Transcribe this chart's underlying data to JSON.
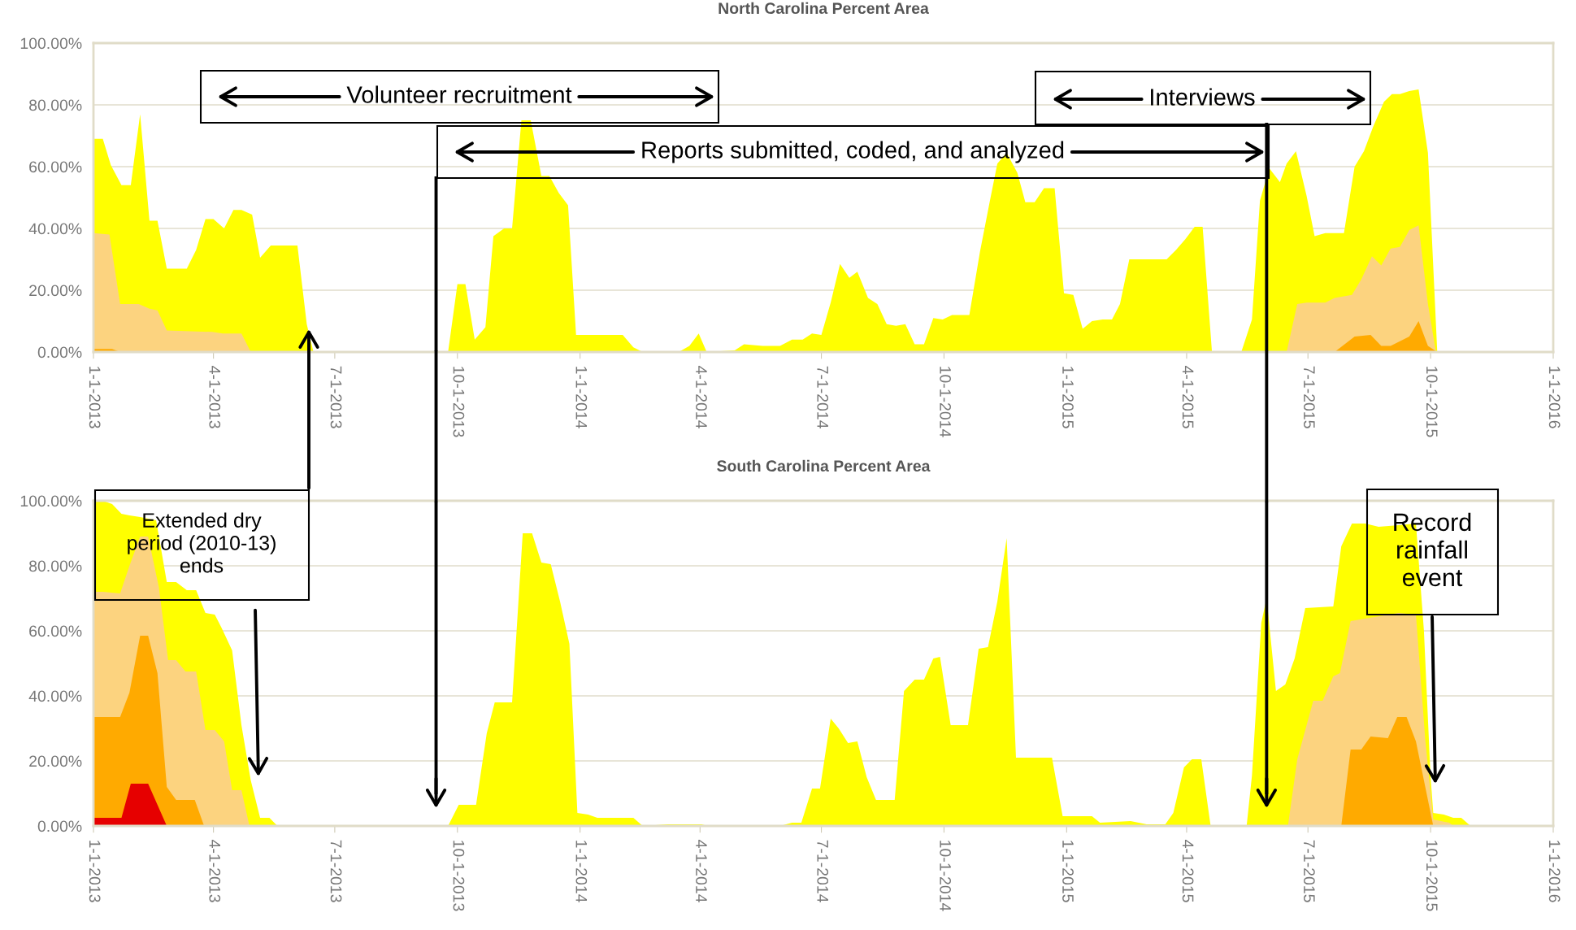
{
  "chart_data": [
    {
      "type": "area",
      "title": "North Carolina Percent Area",
      "xlim": [
        "2013-01-01",
        "2016-01-01"
      ],
      "xticks": [
        {
          "value": "2013-01-01",
          "label": "1-1-2013"
        },
        {
          "value": "2013-04-01",
          "label": "4-1-2013"
        },
        {
          "value": "2013-07-01",
          "label": "7-1-2013"
        },
        {
          "value": "2013-10-01",
          "label": "10-1-2013"
        },
        {
          "value": "2014-01-01",
          "label": "1-1-2014"
        },
        {
          "value": "2014-04-01",
          "label": "4-1-2014"
        },
        {
          "value": "2014-07-01",
          "label": "7-1-2014"
        },
        {
          "value": "2014-10-01",
          "label": "10-1-2014"
        },
        {
          "value": "2015-01-01",
          "label": "1-1-2015"
        },
        {
          "value": "2015-04-01",
          "label": "4-1-2015"
        },
        {
          "value": "2015-07-01",
          "label": "7-1-2015"
        },
        {
          "value": "2015-10-01",
          "label": "10-1-2015"
        },
        {
          "value": "2016-01-01",
          "label": "1-1-2016"
        }
      ],
      "ylim": [
        0,
        100
      ],
      "yticks": [
        {
          "value": 0,
          "label": "0.00%"
        },
        {
          "value": 20,
          "label": "20.00%"
        },
        {
          "value": 40,
          "label": "40.00%"
        },
        {
          "value": 60,
          "label": "60.00%"
        },
        {
          "value": 80,
          "label": "80.00%"
        },
        {
          "value": 100,
          "label": "100.00%"
        }
      ],
      "grid": "y",
      "series": [
        {
          "color": "#ffff00",
          "x": [
            "2013-01-01",
            "2013-01-08",
            "2013-01-14",
            "2013-01-22",
            "2013-01-29",
            "2013-02-05",
            "2013-02-12",
            "2013-02-18",
            "2013-02-25",
            "2013-03-12",
            "2013-03-19",
            "2013-03-26",
            "2013-04-01",
            "2013-04-09",
            "2013-04-16",
            "2013-04-22",
            "2013-04-30",
            "2013-05-06",
            "2013-05-14",
            "2013-06-03",
            "2013-06-10",
            "2013-06-15",
            "2013-09-24",
            "2013-10-01",
            "2013-10-07",
            "2013-10-14",
            "2013-10-22",
            "2013-10-28",
            "2013-11-05",
            "2013-11-11",
            "2013-11-18",
            "2013-11-25",
            "2013-12-03",
            "2013-12-09",
            "2013-12-16",
            "2013-12-23",
            "2013-12-29",
            "2014-02-02",
            "2014-02-10",
            "2014-02-17",
            "2014-03-16",
            "2014-03-24",
            "2014-03-31",
            "2014-04-06",
            "2014-04-27",
            "2014-05-04",
            "2014-05-18",
            "2014-05-31",
            "2014-06-09",
            "2014-06-17",
            "2014-06-24",
            "2014-07-01",
            "2014-07-08",
            "2014-07-15",
            "2014-07-22",
            "2014-07-28",
            "2014-08-05",
            "2014-08-12",
            "2014-08-19",
            "2014-08-26",
            "2014-09-02",
            "2014-09-09",
            "2014-09-16",
            "2014-09-23",
            "2014-09-30",
            "2014-10-07",
            "2014-10-20",
            "2014-10-28",
            "2014-11-04",
            "2014-11-10",
            "2014-11-17",
            "2014-11-25",
            "2014-12-01",
            "2014-12-08",
            "2014-12-15",
            "2014-12-23",
            "2014-12-30",
            "2015-01-06",
            "2015-01-13",
            "2015-01-20",
            "2015-01-28",
            "2015-02-04",
            "2015-02-10",
            "2015-02-17",
            "2015-03-17",
            "2015-03-24",
            "2015-03-31",
            "2015-04-07",
            "2015-04-13",
            "2015-04-20",
            "2015-05-12",
            "2015-05-20",
            "2015-05-26",
            "2015-06-02",
            "2015-06-10",
            "2015-06-15",
            "2015-06-22",
            "2015-06-30",
            "2015-07-06",
            "2015-07-14",
            "2015-07-28",
            "2015-08-05",
            "2015-08-12",
            "2015-08-19",
            "2015-08-27",
            "2015-09-02",
            "2015-09-08",
            "2015-09-15",
            "2015-09-22",
            "2015-09-29",
            "2015-10-06"
          ],
          "values": [
            69,
            69,
            60.5,
            54,
            54,
            77,
            42.5,
            42.5,
            27,
            27,
            33,
            43,
            43,
            40,
            46,
            46,
            44.5,
            30.5,
            34.5,
            34.5,
            9,
            0,
            0,
            22,
            22,
            4,
            8,
            37.5,
            40,
            40,
            75,
            75,
            57,
            57,
            51.5,
            47.5,
            5.5,
            5.5,
            1.5,
            0,
            0,
            2,
            6,
            0,
            0.5,
            2.5,
            2,
            2,
            4,
            4,
            6,
            5.5,
            16,
            28.5,
            24,
            26,
            17.5,
            15.5,
            9,
            8.5,
            9,
            2.5,
            2.5,
            11,
            10.5,
            12,
            12,
            32.5,
            48,
            61,
            64.5,
            58,
            48.5,
            48.5,
            53,
            53,
            19,
            18.5,
            7.5,
            10,
            10.5,
            10.5,
            15.5,
            30,
            30,
            33,
            36.5,
            40.5,
            40.5,
            0,
            0,
            10.5,
            49,
            59.5,
            55,
            61,
            65,
            50.5,
            37.5,
            38.5,
            38.5,
            60,
            65,
            73,
            81,
            83.5,
            83.5,
            84.5,
            85,
            64.5,
            0
          ]
        },
        {
          "color": "#fcd37f",
          "x": [
            "2013-01-01",
            "2013-01-13",
            "2013-01-21",
            "2013-02-04",
            "2013-02-12",
            "2013-02-18",
            "2013-02-25",
            "2013-03-31",
            "2013-04-08",
            "2013-04-22",
            "2013-04-29",
            "2015-06-15",
            "2015-06-23",
            "2015-06-30",
            "2015-07-14",
            "2015-07-21",
            "2015-08-03",
            "2015-08-10",
            "2015-08-18",
            "2015-08-25",
            "2015-09-01",
            "2015-09-08",
            "2015-09-15",
            "2015-09-22",
            "2015-09-29",
            "2015-10-05"
          ],
          "values": [
            38.5,
            38,
            15.5,
            15.5,
            14,
            13.5,
            7,
            6.5,
            6,
            6,
            0,
            0,
            15.5,
            16,
            16,
            17.5,
            18.5,
            23.5,
            31,
            28,
            33.5,
            34,
            39.5,
            41,
            15.5,
            0
          ]
        },
        {
          "color": "#ffaa00",
          "x": [
            "2013-01-01",
            "2013-01-15",
            "2013-01-21",
            "2015-07-21",
            "2015-08-05",
            "2015-08-17",
            "2015-08-25",
            "2015-09-01",
            "2015-09-15",
            "2015-09-22",
            "2015-09-29",
            "2015-10-06"
          ],
          "values": [
            1,
            1,
            0,
            0,
            5,
            5.5,
            2,
            2,
            5,
            10,
            2,
            0
          ]
        }
      ],
      "ref_lines": [
        {
          "axis": "x",
          "value": "2013-09-15",
          "color": "#000000"
        },
        {
          "axis": "x",
          "value": "2015-05-31",
          "color": "#000000"
        }
      ],
      "annotations": [
        "Volunteer recruitment",
        "Reports submitted, coded, and analyzed",
        "Interviews"
      ]
    },
    {
      "type": "area",
      "title": "South Carolina Percent Area",
      "xlim": [
        "2013-01-01",
        "2016-01-01"
      ],
      "xticks": [
        {
          "value": "2013-01-01",
          "label": "1-1-2013"
        },
        {
          "value": "2013-04-01",
          "label": "4-1-2013"
        },
        {
          "value": "2013-07-01",
          "label": "7-1-2013"
        },
        {
          "value": "2013-10-01",
          "label": "10-1-2013"
        },
        {
          "value": "2014-01-01",
          "label": "1-1-2014"
        },
        {
          "value": "2014-04-01",
          "label": "4-1-2014"
        },
        {
          "value": "2014-07-01",
          "label": "7-1-2014"
        },
        {
          "value": "2014-10-01",
          "label": "10-1-2014"
        },
        {
          "value": "2015-01-01",
          "label": "1-1-2015"
        },
        {
          "value": "2015-04-01",
          "label": "4-1-2015"
        },
        {
          "value": "2015-07-01",
          "label": "7-1-2015"
        },
        {
          "value": "2015-10-01",
          "label": "10-1-2015"
        },
        {
          "value": "2016-01-01",
          "label": "1-1-2016"
        }
      ],
      "ylim": [
        0,
        100
      ],
      "yticks": [
        {
          "value": 0,
          "label": "0.00%"
        },
        {
          "value": 20,
          "label": "20.00%"
        },
        {
          "value": 40,
          "label": "40.00%"
        },
        {
          "value": 60,
          "label": "60.00%"
        },
        {
          "value": 80,
          "label": "80.00%"
        },
        {
          "value": 100,
          "label": "100.00%"
        }
      ],
      "grid": "y",
      "series": [
        {
          "color": "#ffff00",
          "x": [
            "2013-01-01",
            "2013-01-08",
            "2013-01-15",
            "2013-01-22",
            "2013-01-28",
            "2013-02-05",
            "2013-02-17",
            "2013-02-25",
            "2013-03-04",
            "2013-03-12",
            "2013-03-19",
            "2013-03-26",
            "2013-04-02",
            "2013-04-07",
            "2013-04-15",
            "2013-04-22",
            "2013-04-29",
            "2013-05-06",
            "2013-05-13",
            "2013-05-19",
            "2013-09-24",
            "2013-10-02",
            "2013-10-15",
            "2013-10-23",
            "2013-10-29",
            "2013-11-11",
            "2013-11-19",
            "2013-11-26",
            "2013-12-03",
            "2013-12-10",
            "2013-12-17",
            "2013-12-24",
            "2013-12-30",
            "2014-01-07",
            "2014-01-14",
            "2014-02-10",
            "2014-02-17",
            "2014-03-08",
            "2014-04-02",
            "2014-04-07",
            "2014-05-31",
            "2014-06-09",
            "2014-06-16",
            "2014-06-24",
            "2014-06-30",
            "2014-07-08",
            "2014-07-14",
            "2014-07-21",
            "2014-07-28",
            "2014-08-04",
            "2014-08-11",
            "2014-08-25",
            "2014-09-01",
            "2014-09-09",
            "2014-09-16",
            "2014-09-23",
            "2014-09-28",
            "2014-10-06",
            "2014-10-19",
            "2014-10-27",
            "2014-11-03",
            "2014-11-10",
            "2014-11-17",
            "2014-11-24",
            "2014-12-08",
            "2014-12-21",
            "2014-12-29",
            "2015-01-11",
            "2015-01-20",
            "2015-01-26",
            "2015-02-18",
            "2015-03-02",
            "2015-03-16",
            "2015-03-22",
            "2015-03-30",
            "2015-04-05",
            "2015-04-12",
            "2015-04-19",
            "2015-05-16",
            "2015-05-20",
            "2015-05-27",
            "2015-05-31",
            "2015-06-07",
            "2015-06-14",
            "2015-06-21",
            "2015-06-29",
            "2015-07-20",
            "2015-07-26",
            "2015-08-03",
            "2015-08-13",
            "2015-08-23",
            "2015-09-07",
            "2015-09-20",
            "2015-09-26",
            "2015-10-01",
            "2015-10-03",
            "2015-10-11",
            "2015-10-18",
            "2015-10-24",
            "2015-10-31"
          ],
          "values": [
            100,
            100,
            99,
            96,
            95.5,
            95,
            94,
            75,
            75,
            72.5,
            72.5,
            65.5,
            65,
            61,
            54,
            31,
            14,
            2.5,
            2.5,
            0,
            0,
            6.5,
            6.5,
            28.5,
            38,
            38,
            90,
            90,
            81,
            80.5,
            69,
            56,
            4,
            3.5,
            2.5,
            2.5,
            0,
            0.5,
            0.5,
            0,
            0,
            1,
            1,
            11.5,
            11.5,
            33,
            30,
            25.5,
            26,
            15,
            8,
            8,
            41.5,
            45,
            45,
            51.5,
            52,
            31,
            31,
            54.5,
            55,
            69,
            88.5,
            21,
            21,
            21,
            3,
            3,
            3,
            1,
            1.5,
            0.5,
            0.5,
            4,
            18,
            20.5,
            20.5,
            0,
            0,
            15.5,
            62.5,
            70,
            41.5,
            43.5,
            51.5,
            67,
            67.5,
            86,
            93,
            93,
            92,
            92.5,
            93,
            60,
            15,
            4,
            3.5,
            2.5,
            2.5,
            0
          ]
        },
        {
          "color": "#fcd37f",
          "x": [
            "2013-01-01",
            "2013-01-08",
            "2013-01-21",
            "2013-01-28",
            "2013-02-05",
            "2013-02-11",
            "2013-02-19",
            "2013-02-26",
            "2013-03-04",
            "2013-03-11",
            "2013-03-19",
            "2013-03-26",
            "2013-04-02",
            "2013-04-09",
            "2013-04-15",
            "2013-04-22",
            "2013-04-28",
            "2015-06-16",
            "2015-06-23",
            "2015-07-05",
            "2015-07-12",
            "2015-07-20",
            "2015-07-25",
            "2015-08-02",
            "2015-09-07",
            "2015-09-20",
            "2015-09-27",
            "2015-10-03",
            "2015-10-15",
            "2015-10-18"
          ],
          "values": [
            72,
            72,
            71.5,
            80,
            89,
            89,
            73.5,
            51,
            51,
            47.5,
            47.5,
            29.5,
            29.5,
            26,
            11,
            11,
            0,
            0,
            20.5,
            38.5,
            38.5,
            46,
            47,
            63,
            65.5,
            65,
            26.5,
            2,
            1,
            0
          ]
        },
        {
          "color": "#ffaa00",
          "x": [
            "2013-01-01",
            "2013-01-21",
            "2013-01-28",
            "2013-02-05",
            "2013-02-11",
            "2013-02-18",
            "2013-02-25",
            "2013-03-04",
            "2013-03-18",
            "2013-03-25",
            "2015-07-26",
            "2015-08-02",
            "2015-08-10",
            "2015-08-17",
            "2015-08-30",
            "2015-09-06",
            "2015-09-13",
            "2015-09-20",
            "2015-10-03"
          ],
          "values": [
            33.5,
            33.5,
            41,
            58.5,
            58.5,
            47,
            12,
            8,
            8,
            0,
            0,
            23.5,
            23.5,
            27.5,
            27,
            33.5,
            33.5,
            26,
            0
          ]
        },
        {
          "color": "#e60000",
          "x": [
            "2013-01-01",
            "2013-01-22",
            "2013-01-29",
            "2013-02-11",
            "2013-02-25"
          ],
          "values": [
            2.5,
            2.5,
            13,
            13,
            0
          ]
        }
      ],
      "ref_lines": [
        {
          "axis": "x",
          "value": "2013-09-15",
          "color": "#000000"
        },
        {
          "axis": "x",
          "value": "2015-05-31",
          "color": "#000000"
        }
      ],
      "annotations": [
        "Extended dry\nperiod (2010-13)\nends",
        "Record\nrainfall\nevent"
      ]
    }
  ]
}
